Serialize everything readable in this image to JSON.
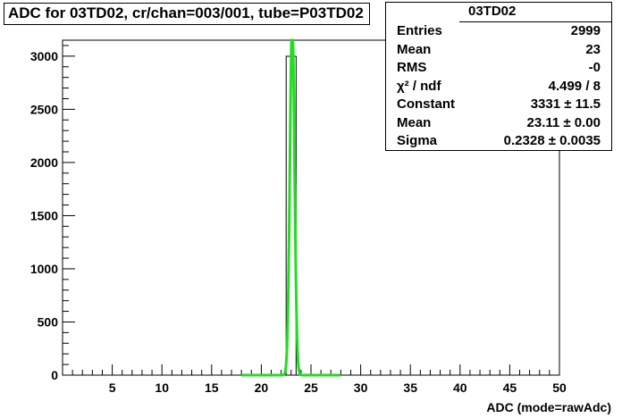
{
  "title": "ADC for 03TD02,  cr/chan=003/001,  tube=P03TD02",
  "stats": {
    "name": "03TD02",
    "rows": [
      {
        "label": "Entries",
        "value": "2999"
      },
      {
        "label": "Mean",
        "value": "23"
      },
      {
        "label": "RMS",
        "value": "-0"
      },
      {
        "label": "χ² / ndf",
        "value": "4.499 / 8"
      },
      {
        "label": "Constant",
        "value": "3331 ± 11.5"
      },
      {
        "label": "Mean",
        "value": "23.11 ± 0.00"
      },
      {
        "label": "Sigma",
        "value": "0.2328 ± 0.0035"
      }
    ]
  },
  "chart_data": {
    "type": "bar",
    "title": "ADC for 03TD02,  cr/chan=003/001,  tube=P03TD02",
    "xlabel": "ADC (mode=rawAdc)",
    "ylabel": "",
    "xlim": [
      0,
      50
    ],
    "ylim": [
      0,
      3150
    ],
    "xticks": [
      5,
      10,
      15,
      20,
      25,
      30,
      35,
      40,
      45,
      50
    ],
    "yticks": [
      0,
      500,
      1000,
      1500,
      2000,
      2500,
      3000
    ],
    "histogram": {
      "bins": [
        {
          "x0": 22.5,
          "x1": 23.5,
          "value": 2999
        }
      ],
      "color": "#000000"
    },
    "fit": {
      "type": "gaussian",
      "constant": 3331,
      "mean": 23.11,
      "sigma": 0.2328,
      "range": [
        18,
        28
      ],
      "color": "#22dd22"
    },
    "grid": false,
    "legend": "top-right"
  }
}
